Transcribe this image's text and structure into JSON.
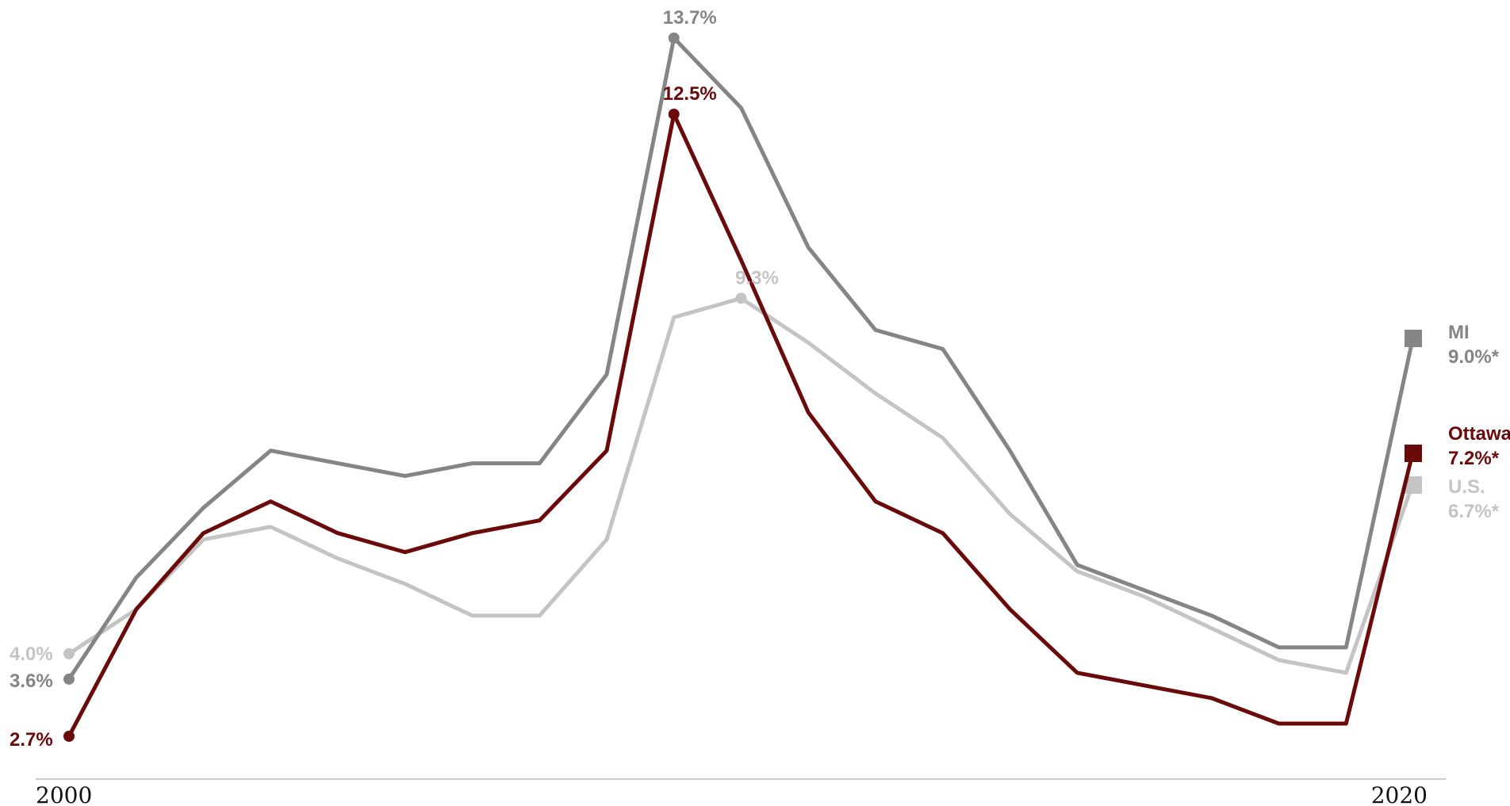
{
  "chart_data": {
    "type": "line",
    "x_start_label": "2000",
    "x_end_label": "2020",
    "x": [
      2000,
      2001,
      2002,
      2003,
      2004,
      2005,
      2006,
      2007,
      2008,
      2009,
      2010,
      2011,
      2012,
      2013,
      2014,
      2015,
      2016,
      2017,
      2018,
      2019,
      2020
    ],
    "ylim": [
      1.5,
      14.5
    ],
    "grid": false,
    "series": [
      {
        "name": "U.S.",
        "color": "#c4c4c4",
        "values": [
          4.0,
          4.7,
          5.8,
          6.0,
          5.5,
          5.1,
          4.6,
          4.6,
          5.8,
          9.3,
          9.6,
          8.9,
          8.1,
          7.4,
          6.2,
          5.3,
          4.9,
          4.4,
          3.9,
          3.7,
          6.7
        ],
        "start_label": "4.0%",
        "peak_label": "9.3%",
        "end_name": "U.S.",
        "end_value": "6.7%*"
      },
      {
        "name": "MI",
        "color": "#858585",
        "values": [
          3.6,
          5.2,
          6.3,
          7.2,
          7.0,
          6.8,
          7.0,
          7.0,
          8.4,
          13.7,
          12.6,
          10.4,
          9.1,
          8.8,
          7.2,
          5.4,
          5.0,
          4.6,
          4.1,
          4.1,
          9.0
        ],
        "start_label": "3.6%",
        "peak_label": "13.7%",
        "end_name": "MI",
        "end_value": "9.0%*"
      },
      {
        "name": "Ottawa",
        "color": "#6b0a0a",
        "values": [
          2.7,
          4.7,
          5.9,
          6.4,
          5.9,
          5.6,
          5.9,
          6.1,
          7.2,
          12.5,
          10.2,
          7.8,
          6.4,
          5.9,
          4.7,
          3.7,
          3.5,
          3.3,
          2.9,
          2.9,
          7.2
        ],
        "start_label": "2.7%",
        "peak_label": "12.5%",
        "end_name": "Ottawa",
        "end_value": "7.2%*"
      }
    ]
  }
}
